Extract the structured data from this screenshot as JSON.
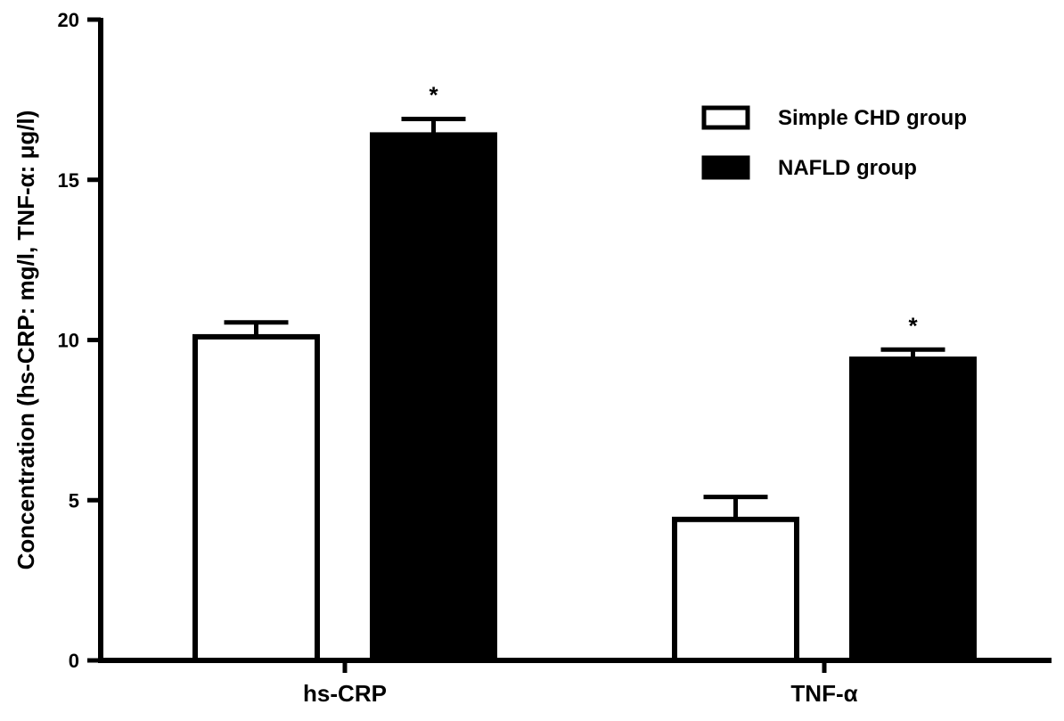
{
  "chart_data": {
    "type": "bar",
    "categories": [
      "hs-CRP",
      "TNF-α"
    ],
    "series": [
      {
        "name": "Simple CHD group",
        "values": [
          10.1,
          4.4
        ],
        "errors": [
          0.45,
          0.7
        ],
        "fill": "#ffffff"
      },
      {
        "name": "NAFLD group",
        "values": [
          16.4,
          9.4
        ],
        "errors": [
          0.5,
          0.3
        ],
        "fill": "#000000"
      }
    ],
    "ylabel": "Concentration  (hs-CRP: mg/l, TNF-α: μg/l)",
    "ylim": [
      0,
      20
    ],
    "yticks": [
      0,
      5,
      10,
      15,
      20
    ],
    "significance": [
      {
        "category": "hs-CRP",
        "series": "NAFLD group",
        "mark": "*"
      },
      {
        "category": "TNF-α",
        "series": "NAFLD group",
        "mark": "*"
      }
    ],
    "legend_position": "top-right",
    "grid": false
  }
}
